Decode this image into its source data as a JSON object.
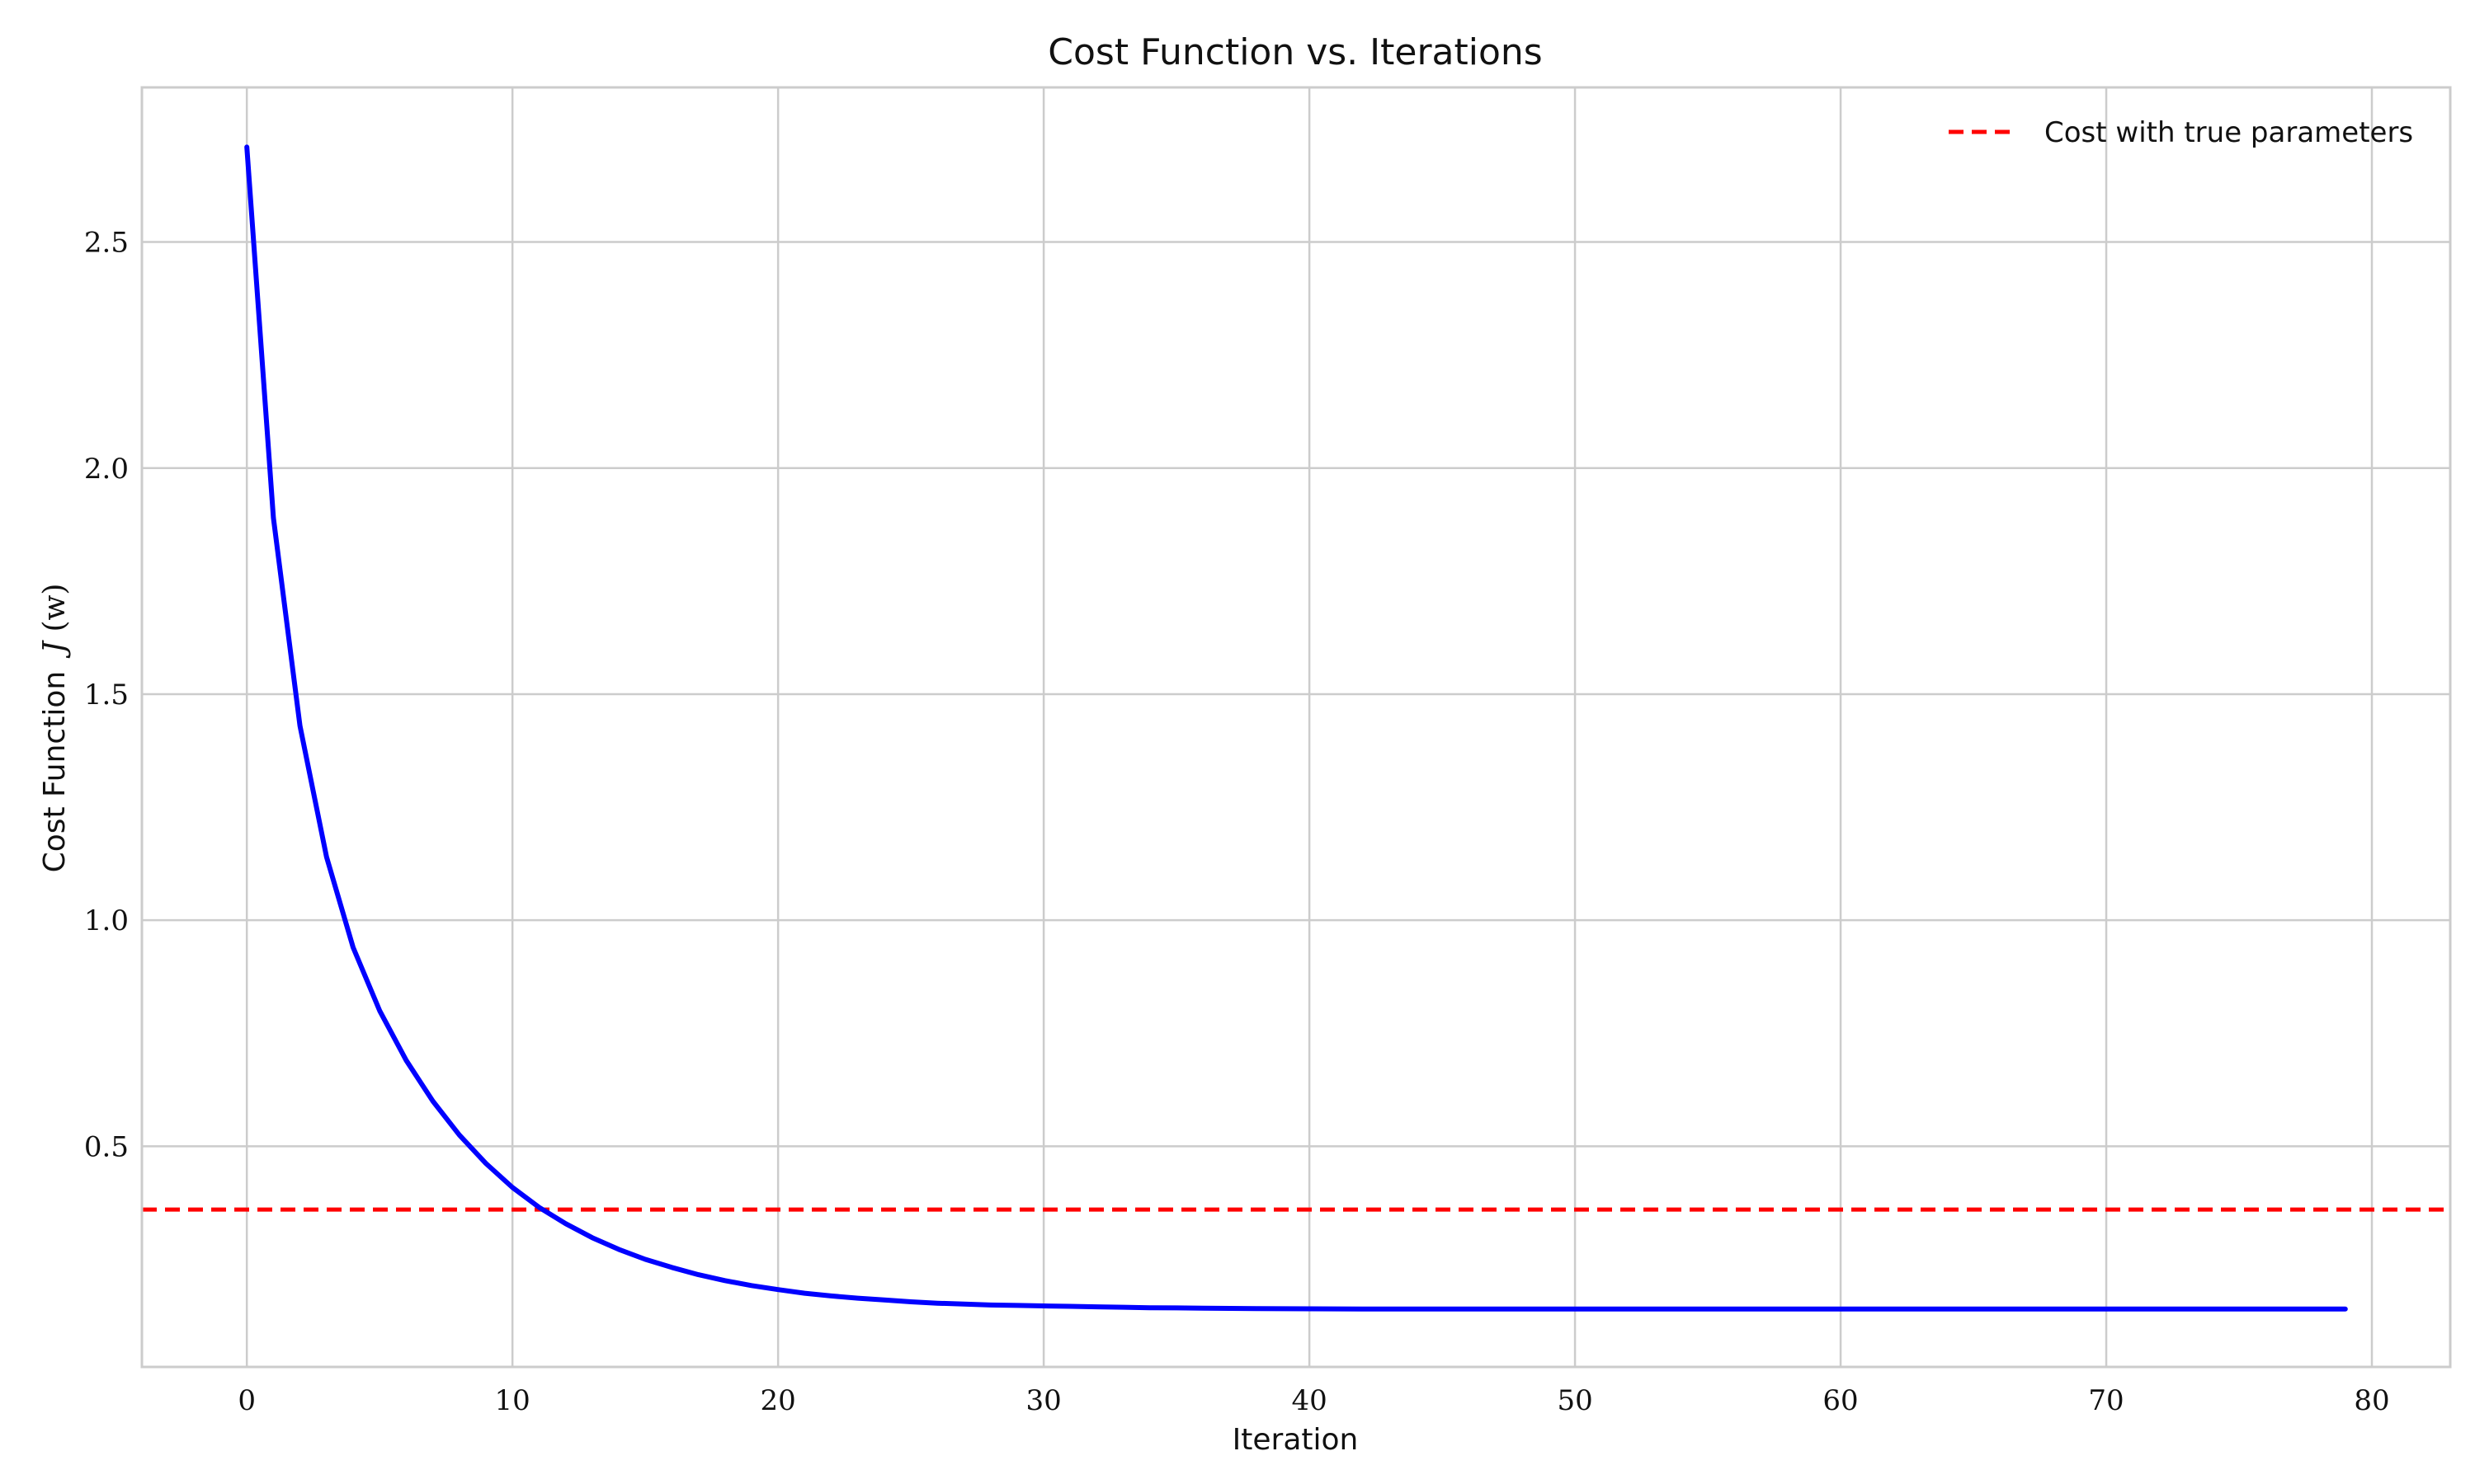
{
  "chart_data": {
    "type": "line",
    "title": "Cost Function vs. Iterations",
    "xlabel": "Iteration",
    "ylabel_prefix": "Cost Function",
    "ylabel_math_symbol": "J",
    "ylabel_math_arg": "(w)",
    "xlim": [
      -3.95,
      82.95
    ],
    "ylim": [
      0.012,
      2.842
    ],
    "x_ticks": [
      0,
      10,
      20,
      30,
      40,
      50,
      60,
      70,
      80
    ],
    "y_ticks": [
      0.5,
      1.0,
      1.5,
      2.0,
      2.5
    ],
    "grid": true,
    "legend_position": "top-right",
    "series": [
      {
        "kind": "line",
        "color": "#0000ff",
        "x": [
          0,
          1,
          2,
          3,
          4,
          5,
          6,
          7,
          8,
          9,
          10,
          11,
          12,
          13,
          14,
          15,
          16,
          17,
          18,
          19,
          20,
          21,
          22,
          23,
          24,
          25,
          26,
          27,
          28,
          29,
          30,
          31,
          32,
          33,
          34,
          35,
          36,
          37,
          38,
          39,
          40,
          41,
          42,
          43,
          44,
          45,
          46,
          47,
          48,
          49,
          50,
          51,
          52,
          53,
          54,
          55,
          56,
          57,
          58,
          59,
          60,
          61,
          62,
          63,
          64,
          65,
          66,
          67,
          68,
          69,
          70,
          71,
          72,
          73,
          74,
          75,
          76,
          77,
          78,
          79
        ],
        "y": [
          2.71,
          1.89,
          1.43,
          1.14,
          0.94,
          0.8,
          0.69,
          0.6,
          0.525,
          0.462,
          0.409,
          0.365,
          0.329,
          0.298,
          0.272,
          0.25,
          0.232,
          0.216,
          0.203,
          0.192,
          0.183,
          0.175,
          0.169,
          0.164,
          0.16,
          0.156,
          0.153,
          0.151,
          0.149,
          0.148,
          0.147,
          0.146,
          0.145,
          0.144,
          0.143,
          0.1425,
          0.142,
          0.1415,
          0.141,
          0.1407,
          0.1405,
          0.1403,
          0.1401,
          0.14,
          0.14,
          0.14,
          0.14,
          0.14,
          0.14,
          0.14,
          0.14,
          0.14,
          0.14,
          0.14,
          0.14,
          0.14,
          0.14,
          0.14,
          0.14,
          0.14,
          0.14,
          0.14,
          0.14,
          0.14,
          0.14,
          0.14,
          0.14,
          0.14,
          0.14,
          0.14,
          0.14,
          0.14,
          0.14,
          0.14,
          0.14,
          0.14,
          0.14,
          0.14,
          0.14,
          0.14
        ]
      },
      {
        "kind": "hline",
        "name": "Cost with true parameters",
        "color": "#ff0000",
        "style": "dashed",
        "y": 0.36
      }
    ]
  }
}
